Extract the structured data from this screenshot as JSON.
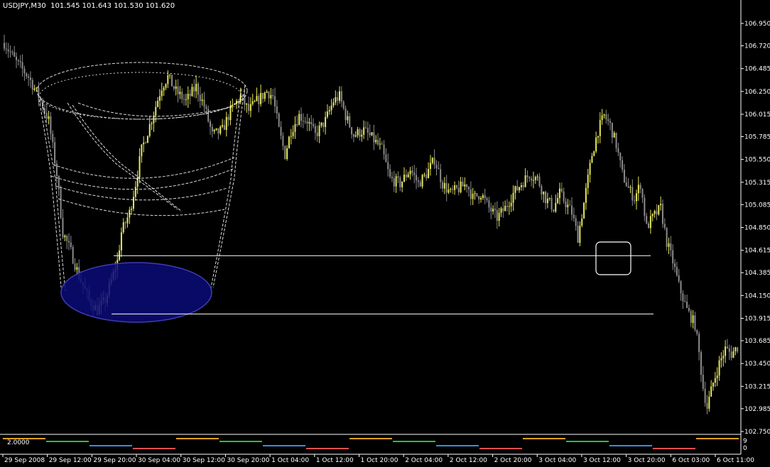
{
  "header": {
    "symbol": "USDJPY,M30",
    "ohlc": "101.545 101.643 101.530 101.620"
  },
  "indicator": {
    "value_label": "2.0000",
    "top_tick": "9",
    "bottom_tick": "0"
  },
  "colors": {
    "background": "#000000",
    "bull_candle": "#e8e85a",
    "bear_candle": "#8c8c8c",
    "ellipse_fill": "#0a0a78",
    "ellipse_stroke": "#3c3cb4",
    "bucket_stroke": "#ffffff",
    "support_line": "#ffffff",
    "ind_green": "#2ec22e",
    "ind_orange": "#e0a020",
    "ind_blue": "#3a8ee0",
    "ind_red": "#e05050"
  },
  "chart_data": {
    "type": "candlestick",
    "title": "USDJPY,M30",
    "ylim": [
      102.75,
      106.95
    ],
    "yticks": [
      "106.950",
      "106.720",
      "106.485",
      "106.250",
      "106.015",
      "105.785",
      "105.550",
      "105.315",
      "105.085",
      "104.850",
      "104.615",
      "104.385",
      "104.150",
      "103.915",
      "103.685",
      "103.450",
      "103.215",
      "102.985",
      "102.750"
    ],
    "xticks": [
      "29 Sep 2008",
      "29 Sep 12:00",
      "29 Sep 20:00",
      "30 Sep 04:00",
      "30 Sep 12:00",
      "30 Sep 20:00",
      "1 Oct 04:00",
      "1 Oct 12:00",
      "1 Oct 20:00",
      "2 Oct 04:00",
      "2 Oct 12:00",
      "2 Oct 20:00",
      "3 Oct 04:00",
      "3 Oct 12:00",
      "3 Oct 20:00",
      "6 Oct 03:00",
      "6 Oct 11:00"
    ],
    "price_path": [
      [
        0,
        106.75
      ],
      [
        6,
        106.55
      ],
      [
        12,
        106.4
      ],
      [
        17,
        106.2
      ],
      [
        22,
        105.95
      ],
      [
        26,
        105.4
      ],
      [
        29,
        104.8
      ],
      [
        33,
        104.6
      ],
      [
        37,
        104.35
      ],
      [
        42,
        104.1
      ],
      [
        46,
        104.0
      ],
      [
        50,
        104.1
      ],
      [
        53,
        104.3
      ],
      [
        56,
        104.5
      ],
      [
        58,
        104.8
      ],
      [
        62,
        105.0
      ],
      [
        65,
        105.3
      ],
      [
        68,
        105.65
      ],
      [
        72,
        105.9
      ],
      [
        75,
        106.1
      ],
      [
        78,
        106.3
      ],
      [
        81,
        106.4
      ],
      [
        85,
        106.25
      ],
      [
        90,
        106.15
      ],
      [
        95,
        106.3
      ],
      [
        99,
        106.1
      ],
      [
        103,
        105.8
      ],
      [
        108,
        105.85
      ],
      [
        112,
        106.05
      ],
      [
        117,
        106.2
      ],
      [
        121,
        106.05
      ],
      [
        125,
        106.15
      ],
      [
        130,
        106.25
      ],
      [
        133,
        106.2
      ],
      [
        136,
        105.85
      ],
      [
        139,
        105.6
      ],
      [
        142,
        105.85
      ],
      [
        146,
        106.0
      ],
      [
        150,
        105.95
      ],
      [
        154,
        105.8
      ],
      [
        159,
        105.95
      ],
      [
        163,
        106.15
      ],
      [
        166,
        106.2
      ],
      [
        169,
        106.0
      ],
      [
        173,
        105.8
      ],
      [
        178,
        105.85
      ],
      [
        183,
        105.75
      ],
      [
        187,
        105.65
      ],
      [
        191,
        105.35
      ],
      [
        196,
        105.3
      ],
      [
        201,
        105.45
      ],
      [
        205,
        105.3
      ],
      [
        209,
        105.4
      ],
      [
        213,
        105.55
      ],
      [
        217,
        105.3
      ],
      [
        221,
        105.2
      ],
      [
        225,
        105.25
      ],
      [
        229,
        105.3
      ],
      [
        232,
        105.15
      ],
      [
        236,
        105.2
      ],
      [
        240,
        105.05
      ],
      [
        244,
        104.95
      ],
      [
        248,
        105.05
      ],
      [
        252,
        105.2
      ],
      [
        256,
        105.3
      ],
      [
        260,
        105.4
      ],
      [
        264,
        105.35
      ],
      [
        268,
        105.15
      ],
      [
        272,
        105.05
      ],
      [
        275,
        105.2
      ],
      [
        278,
        105.1
      ],
      [
        281,
        105.0
      ],
      [
        284,
        104.75
      ],
      [
        287,
        105.1
      ],
      [
        291,
        105.6
      ],
      [
        294,
        105.85
      ],
      [
        297,
        106.0
      ],
      [
        300,
        105.9
      ],
      [
        303,
        105.7
      ],
      [
        306,
        105.4
      ],
      [
        309,
        105.25
      ],
      [
        312,
        105.15
      ],
      [
        315,
        105.3
      ],
      [
        318,
        104.85
      ],
      [
        321,
        104.95
      ],
      [
        325,
        105.05
      ],
      [
        328,
        104.7
      ],
      [
        331,
        104.5
      ],
      [
        334,
        104.25
      ],
      [
        338,
        104.0
      ],
      [
        342,
        103.85
      ],
      [
        344,
        103.55
      ],
      [
        346,
        103.2
      ],
      [
        348,
        103.0
      ],
      [
        351,
        103.25
      ],
      [
        354,
        103.45
      ],
      [
        357,
        103.6
      ],
      [
        360,
        103.55
      ],
      [
        363,
        103.62
      ]
    ],
    "annotations": {
      "support_lines": [
        104.56,
        103.96
      ],
      "highlight_box": "3 Oct 12:00"
    }
  }
}
